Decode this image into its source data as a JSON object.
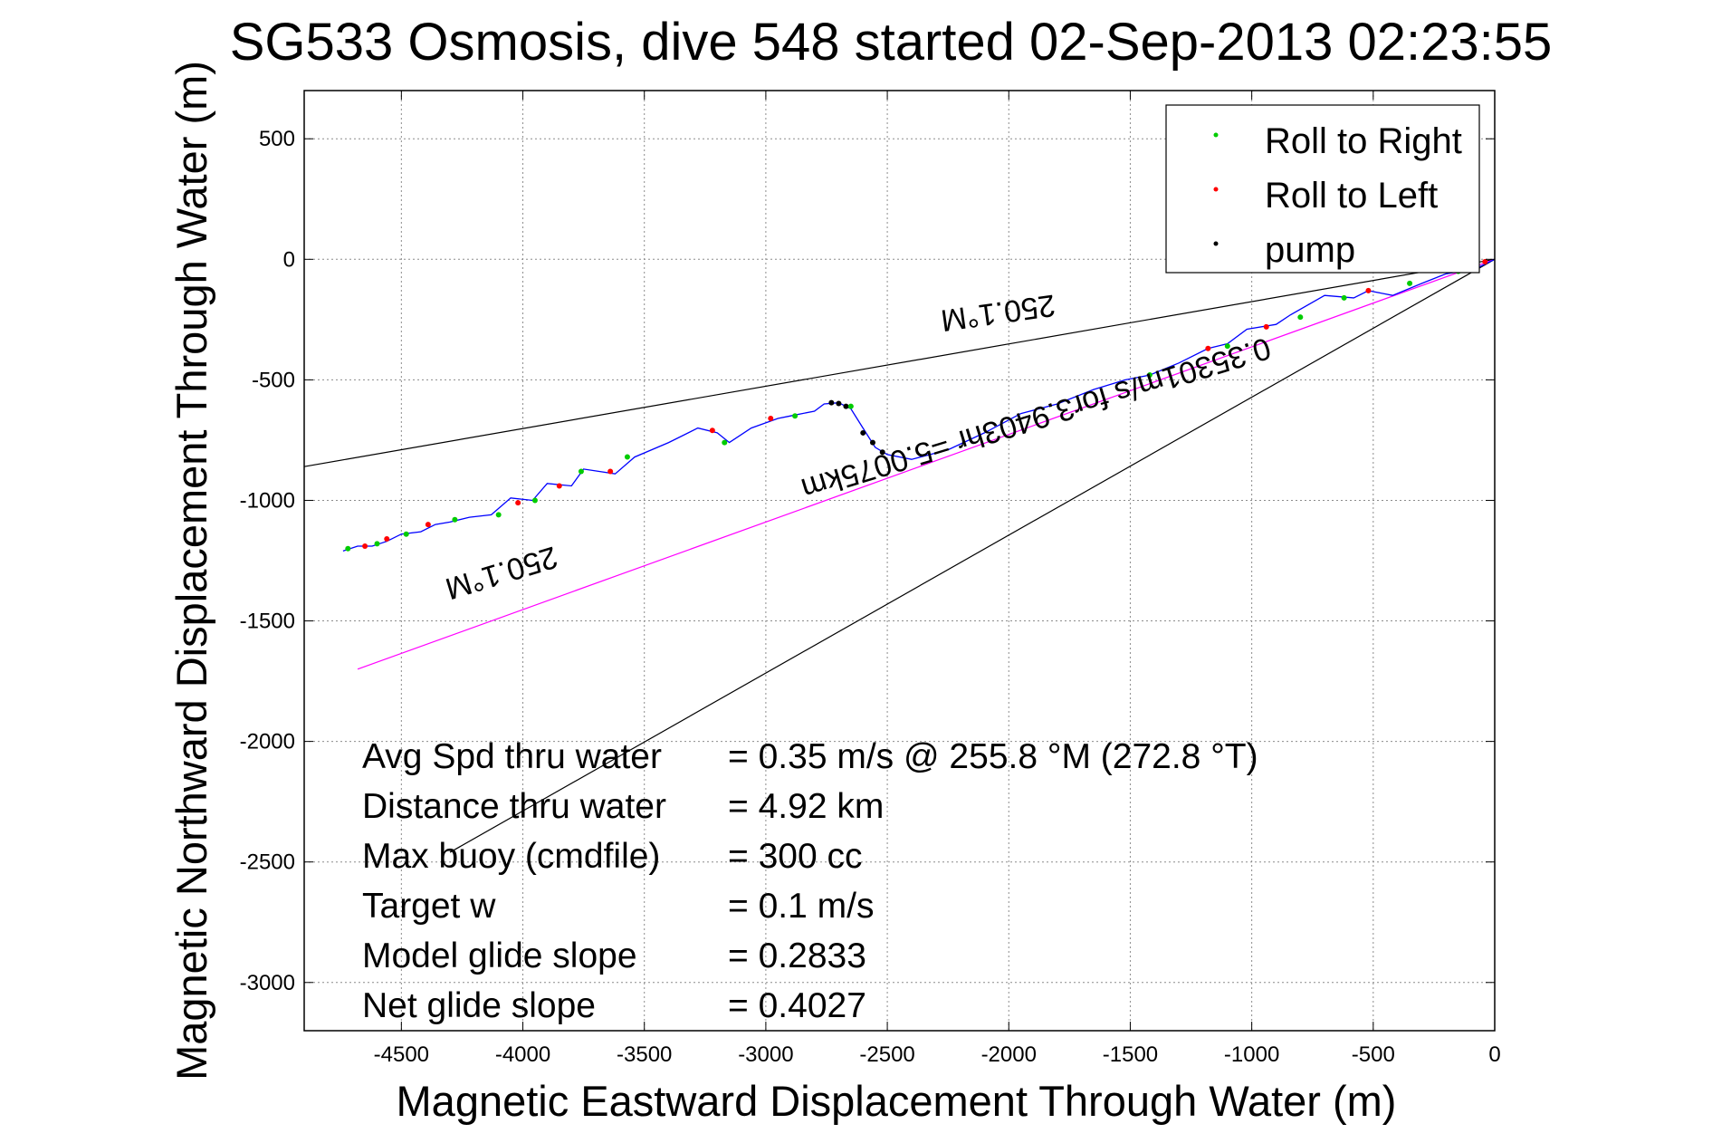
{
  "chart_data": {
    "type": "line",
    "title": "SG533 Osmosis, dive 548 started 02-Sep-2013 02:23:55",
    "xlabel": "Magnetic Eastward Displacement Through Water (m)",
    "ylabel": "Magnetic Northward Displacement Through Water (m)",
    "xlim": [
      -4900,
      0
    ],
    "ylim": [
      -3200,
      700
    ],
    "grid": true,
    "x_ticks": [
      "-4500",
      "-4000",
      "-3500",
      "-3000",
      "-2500",
      "-2000",
      "-1500",
      "-1000",
      "-500",
      "0"
    ],
    "x_tick_values": [
      -4500,
      -4000,
      -3500,
      -3000,
      -2500,
      -2000,
      -1500,
      -1000,
      -500,
      0
    ],
    "y_ticks": [
      "500",
      "0",
      "-500",
      "-1000",
      "-1500",
      "-2000",
      "-2500",
      "-3000"
    ],
    "y_tick_values": [
      500,
      0,
      -500,
      -1000,
      -1500,
      -2000,
      -2500,
      -3000
    ],
    "legend": {
      "position": "top-right",
      "entries": [
        {
          "label": "Roll to Right",
          "color": "#00cc00"
        },
        {
          "label": "Roll to Left",
          "color": "#ff0000"
        },
        {
          "label": "pump",
          "color": "#000000"
        }
      ]
    },
    "track": {
      "color": "#0000ff",
      "points": [
        [
          0,
          0
        ],
        [
          -80,
          -40
        ],
        [
          -200,
          -60
        ],
        [
          -300,
          -100
        ],
        [
          -420,
          -150
        ],
        [
          -520,
          -130
        ],
        [
          -580,
          -160
        ],
        [
          -700,
          -150
        ],
        [
          -840,
          -230
        ],
        [
          -900,
          -270
        ],
        [
          -1020,
          -290
        ],
        [
          -1100,
          -350
        ],
        [
          -1180,
          -370
        ],
        [
          -1300,
          -430
        ],
        [
          -1420,
          -480
        ],
        [
          -1520,
          -500
        ],
        [
          -1650,
          -540
        ],
        [
          -1800,
          -600
        ],
        [
          -1950,
          -640
        ],
        [
          -2100,
          -720
        ],
        [
          -2250,
          -790
        ],
        [
          -2400,
          -830
        ],
        [
          -2500,
          -810
        ],
        [
          -2550,
          -780
        ],
        [
          -2600,
          -700
        ],
        [
          -2650,
          -620
        ],
        [
          -2700,
          -595
        ],
        [
          -2760,
          -600
        ],
        [
          -2800,
          -630
        ],
        [
          -2900,
          -650
        ],
        [
          -2950,
          -660
        ],
        [
          -3060,
          -700
        ],
        [
          -3150,
          -760
        ],
        [
          -3200,
          -720
        ],
        [
          -3280,
          -700
        ],
        [
          -3400,
          -760
        ],
        [
          -3540,
          -820
        ],
        [
          -3620,
          -890
        ],
        [
          -3750,
          -870
        ],
        [
          -3800,
          -940
        ],
        [
          -3900,
          -930
        ],
        [
          -3960,
          -1000
        ],
        [
          -4050,
          -990
        ],
        [
          -4130,
          -1060
        ],
        [
          -4220,
          -1070
        ],
        [
          -4300,
          -1090
        ],
        [
          -4360,
          -1100
        ],
        [
          -4420,
          -1130
        ],
        [
          -4500,
          -1140
        ],
        [
          -4560,
          -1170
        ],
        [
          -4620,
          -1190
        ],
        [
          -4680,
          -1190
        ],
        [
          -4740,
          -1210
        ]
      ]
    },
    "roll_right_points": [
      [
        -4720,
        -1200
      ],
      [
        -4600,
        -1180
      ],
      [
        -4480,
        -1140
      ],
      [
        -4280,
        -1080
      ],
      [
        -4100,
        -1060
      ],
      [
        -3950,
        -1000
      ],
      [
        -3760,
        -880
      ],
      [
        -3570,
        -820
      ],
      [
        -3170,
        -760
      ],
      [
        -2880,
        -650
      ],
      [
        -2650,
        -610
      ],
      [
        -1420,
        -480
      ],
      [
        -1100,
        -360
      ],
      [
        -800,
        -240
      ],
      [
        -620,
        -160
      ],
      [
        -350,
        -100
      ],
      [
        -150,
        -50
      ]
    ],
    "roll_left_points": [
      [
        -4650,
        -1190
      ],
      [
        -4560,
        -1160
      ],
      [
        -4390,
        -1100
      ],
      [
        -4020,
        -1010
      ],
      [
        -3850,
        -940
      ],
      [
        -3640,
        -880
      ],
      [
        -3220,
        -710
      ],
      [
        -2980,
        -660
      ],
      [
        -1180,
        -370
      ],
      [
        -940,
        -280
      ],
      [
        -520,
        -130
      ],
      [
        -40,
        -10
      ]
    ],
    "pump_points": [
      [
        -2730,
        -595
      ],
      [
        -2700,
        -598
      ],
      [
        -2670,
        -610
      ],
      [
        -2600,
        -720
      ],
      [
        -2560,
        -760
      ],
      [
        -2520,
        -800
      ]
    ],
    "reference_lines": [
      {
        "name": "envelope-upper",
        "color": "#000000",
        "points": [
          [
            0,
            0
          ],
          [
            -4900,
            -860
          ]
        ]
      },
      {
        "name": "envelope-lower",
        "color": "#000000",
        "points": [
          [
            0,
            0
          ],
          [
            -4300,
            -2460
          ]
        ]
      },
      {
        "name": "heading-line",
        "color": "#ff00ff",
        "points": [
          [
            0,
            0
          ],
          [
            -4680,
            -1700
          ]
        ]
      }
    ],
    "annotations": [
      {
        "text": "250.1°M",
        "x": -2050,
        "y": -180,
        "rotation_deg": -8
      },
      {
        "text": "0.35301m/s for3.9403hr =5.0075km",
        "x": -1900,
        "y": -620,
        "rotation_deg": -17
      },
      {
        "text": "250.1°M",
        "x": -4100,
        "y": -1260,
        "rotation_deg": -17
      }
    ],
    "info_text": [
      {
        "label": "Avg Spd thru water",
        "value": "=  0.35 m/s @ 255.8 °M (272.8 °T)"
      },
      {
        "label": "Distance thru water",
        "value": "=  4.92 km"
      },
      {
        "label": "Max buoy (cmdfile)",
        "value": "= 300 cc"
      },
      {
        "label": "Target w",
        "value": "= 0.1 m/s"
      },
      {
        "label": "Model glide slope",
        "value": "= 0.2833"
      },
      {
        "label": "Net glide slope",
        "value": "= 0.4027"
      }
    ]
  }
}
